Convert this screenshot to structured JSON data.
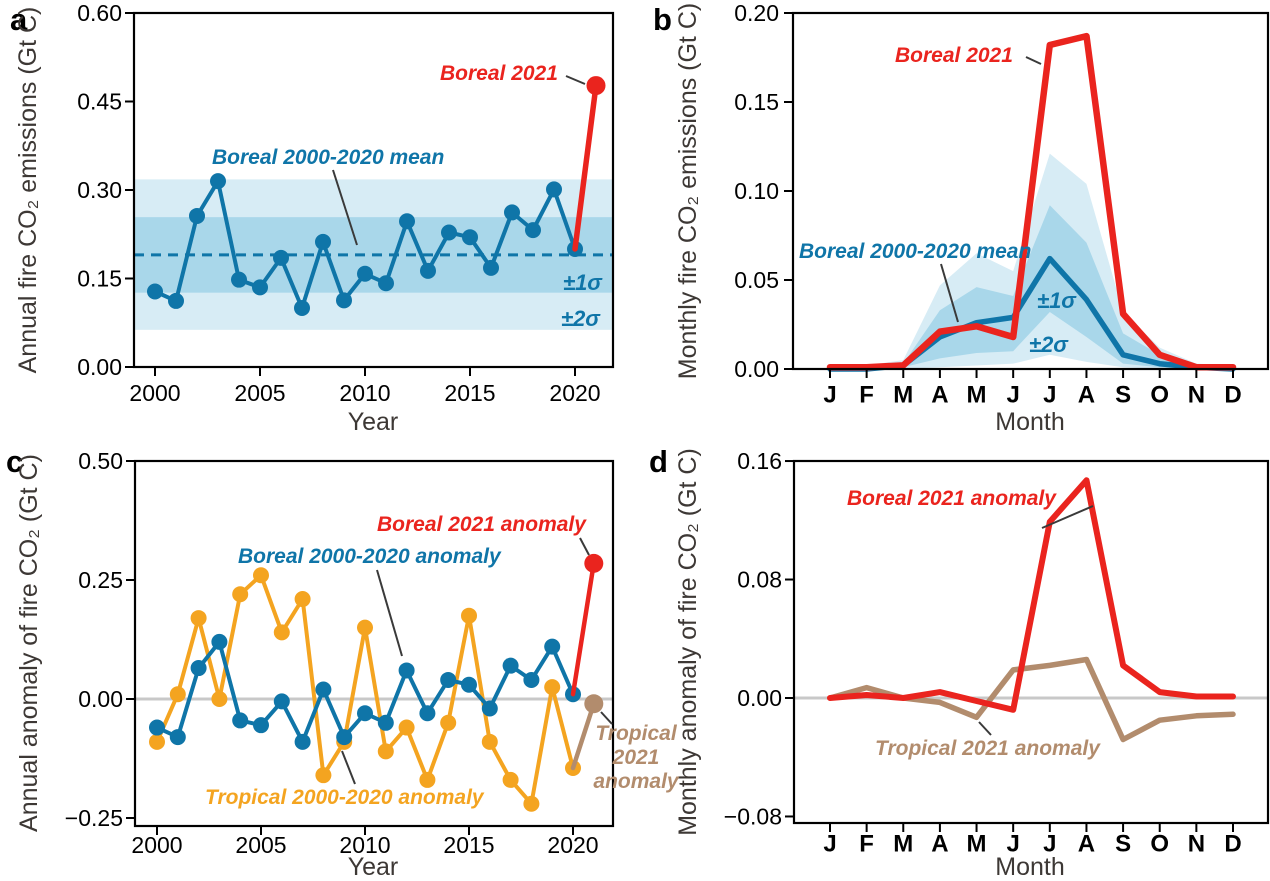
{
  "figure": {
    "panel_letters": [
      "a",
      "b",
      "c",
      "d"
    ],
    "colors": {
      "red": "#ea241e",
      "blue": "#0f75a8",
      "band1": "#a9d7ea",
      "band2": "#d7ecf5",
      "orange": "#f4a420",
      "tan": "#b28c6d",
      "zero_line": "#c8c8c8",
      "leader": "#3a3a3a",
      "axis": "#000000"
    }
  },
  "panels": [
    {
      "letter": "a",
      "xlabel": "Year",
      "ylabel": "Annual fire CO₂ emissions (Gt C)",
      "annotations": [
        {
          "id": "boreal-2021",
          "text": "Boreal 2021",
          "color": "red"
        },
        {
          "id": "boreal-mean",
          "text": "Boreal 2000-2020 mean",
          "color": "blue"
        },
        {
          "id": "sigma1",
          "text": "±1σ",
          "color": "blue"
        },
        {
          "id": "sigma2",
          "text": "±2σ",
          "color": "blue"
        }
      ]
    },
    {
      "letter": "b",
      "xlabel": "Month",
      "ylabel": "Monthly fire CO₂ emissions (Gt C)",
      "annotations": [
        {
          "id": "boreal-2021",
          "text": "Boreal 2021",
          "color": "red"
        },
        {
          "id": "boreal-mean",
          "text": "Boreal 2000-2020 mean",
          "color": "blue"
        },
        {
          "id": "sigma1",
          "text": "±1σ",
          "color": "blue"
        },
        {
          "id": "sigma2",
          "text": "±2σ",
          "color": "blue"
        }
      ]
    },
    {
      "letter": "c",
      "xlabel": "Year",
      "ylabel": "Annual anomaly of fire CO₂ (Gt C)",
      "annotations": [
        {
          "id": "boreal-2021-anomaly",
          "text": "Boreal 2021 anomaly",
          "color": "red"
        },
        {
          "id": "boreal-anomaly",
          "text": "Boreal 2000-2020 anomaly",
          "color": "blue"
        },
        {
          "id": "tropical-anomaly",
          "text": "Tropical 2000-2020 anomaly",
          "color": "orange"
        },
        {
          "id": "tropical-2021-anomaly",
          "text": "Tropical 2021 anomaly",
          "color": "tan"
        }
      ]
    },
    {
      "letter": "d",
      "xlabel": "Month",
      "ylabel": "Monthly anomaly of fire CO₂ (Gt C)",
      "annotations": [
        {
          "id": "boreal-2021-anomaly",
          "text": "Boreal 2021 anomaly",
          "color": "red"
        },
        {
          "id": "tropical-2021-anomaly",
          "text": "Tropical 2021 anomaly",
          "color": "tan"
        }
      ]
    }
  ],
  "chart_data": [
    {
      "type": "line",
      "panel": "a",
      "xlabel": "Year",
      "ylabel": "Annual fire CO₂ emissions (Gt C)",
      "xlim": [
        1999,
        2021.8
      ],
      "ylim": [
        0.0,
        0.6
      ],
      "xticks": {
        "values": [
          2000,
          2005,
          2010,
          2015,
          2020
        ],
        "labels": [
          "2000",
          "2005",
          "2010",
          "2015",
          "2020"
        ]
      },
      "yticks": {
        "values": [
          0.0,
          0.15,
          0.3,
          0.45,
          0.6
        ],
        "labels": [
          "0.00",
          "0.15",
          "0.30",
          "0.45",
          "0.60"
        ]
      },
      "mean_line": {
        "value": 0.19,
        "style": "dashed",
        "color": "blue",
        "label": "Boreal 2000-2020 mean"
      },
      "bands": [
        {
          "name": "±2σ",
          "range": [
            0.063,
            0.318
          ],
          "color": "band2"
        },
        {
          "name": "±1σ",
          "range": [
            0.126,
            0.254
          ],
          "color": "band1"
        }
      ],
      "series": [
        {
          "name": "Boreal 2000-2020",
          "color": "blue",
          "dots": true,
          "width": 4,
          "x": [
            2000,
            2001,
            2002,
            2003,
            2004,
            2005,
            2006,
            2007,
            2008,
            2009,
            2010,
            2011,
            2012,
            2013,
            2014,
            2015,
            2016,
            2017,
            2018,
            2019,
            2020
          ],
          "values": [
            0.128,
            0.112,
            0.256,
            0.315,
            0.148,
            0.135,
            0.185,
            0.1,
            0.212,
            0.113,
            0.158,
            0.142,
            0.247,
            0.163,
            0.228,
            0.22,
            0.168,
            0.262,
            0.232,
            0.301,
            0.2
          ]
        },
        {
          "name": "Boreal 2021",
          "color": "red",
          "dots": "last",
          "width": 5.5,
          "x": [
            2020,
            2021
          ],
          "values": [
            0.2,
            0.477
          ]
        }
      ]
    },
    {
      "type": "line",
      "panel": "b",
      "xlabel": "Month",
      "ylabel": "Monthly fire CO₂ emissions (Gt C)",
      "categories": [
        "J",
        "F",
        "M",
        "A",
        "M",
        "J",
        "J",
        "A",
        "S",
        "O",
        "N",
        "D"
      ],
      "ylim": [
        0.0,
        0.2
      ],
      "yticks": {
        "values": [
          0.0,
          0.05,
          0.1,
          0.15,
          0.2
        ],
        "labels": [
          "0.00",
          "0.05",
          "0.10",
          "0.15",
          "0.20"
        ]
      },
      "bands": [
        {
          "name": "±2σ",
          "color": "band2",
          "upper": [
            0.001,
            0.002,
            0.005,
            0.047,
            0.065,
            0.055,
            0.121,
            0.104,
            0.032,
            0.012,
            0.003,
            0.002
          ],
          "lower": [
            0,
            0,
            0,
            0.001,
            0.002,
            0.003,
            0.008,
            0.004,
            0.001,
            0,
            0,
            0
          ]
        },
        {
          "name": "±1σ",
          "color": "band1",
          "upper": [
            0.001,
            0.001,
            0.003,
            0.033,
            0.046,
            0.041,
            0.092,
            0.071,
            0.02,
            0.008,
            0.002,
            0.001
          ],
          "lower": [
            0,
            0,
            0.001,
            0.006,
            0.009,
            0.01,
            0.032,
            0.018,
            0.003,
            0.001,
            0,
            0
          ]
        }
      ],
      "series": [
        {
          "name": "Boreal 2000-2020 mean",
          "color": "blue",
          "dots": false,
          "width": 5.5,
          "values": [
            0.0,
            0.0,
            0.002,
            0.018,
            0.026,
            0.029,
            0.062,
            0.039,
            0.008,
            0.003,
            0.001,
            0.0
          ]
        },
        {
          "name": "Boreal 2021",
          "color": "red",
          "dots": false,
          "width": 6.5,
          "values": [
            0.001,
            0.001,
            0.002,
            0.021,
            0.024,
            0.018,
            0.182,
            0.187,
            0.031,
            0.008,
            0.001,
            0.001
          ]
        }
      ]
    },
    {
      "type": "line",
      "panel": "c",
      "xlabel": "Year",
      "ylabel": "Annual anomaly of fire CO₂ (Gt C)",
      "xlim": [
        1999,
        2021.8
      ],
      "ylim": [
        -0.27,
        0.5
      ],
      "zero_line": true,
      "xticks": {
        "values": [
          2000,
          2005,
          2010,
          2015,
          2020
        ],
        "labels": [
          "2000",
          "2005",
          "2010",
          "2015",
          "2020"
        ]
      },
      "yticks": {
        "values": [
          -0.25,
          0.0,
          0.25,
          0.5
        ],
        "labels": [
          "−0.25",
          "0.00",
          "0.25",
          "0.50"
        ]
      },
      "series": [
        {
          "name": "Tropical 2000-2020 anomaly",
          "color": "orange",
          "dots": true,
          "width": 4,
          "x": [
            2000,
            2001,
            2002,
            2003,
            2004,
            2005,
            2006,
            2007,
            2008,
            2009,
            2010,
            2011,
            2012,
            2013,
            2014,
            2015,
            2016,
            2017,
            2018,
            2019,
            2020
          ],
          "values": [
            -0.09,
            0.01,
            0.17,
            0.0,
            0.22,
            0.26,
            0.14,
            0.21,
            -0.16,
            -0.09,
            0.15,
            -0.11,
            -0.06,
            -0.17,
            -0.05,
            0.175,
            -0.09,
            -0.17,
            -0.22,
            0.025,
            -0.145
          ]
        },
        {
          "name": "Boreal 2000-2020 anomaly",
          "color": "blue",
          "dots": true,
          "width": 4,
          "x": [
            2000,
            2001,
            2002,
            2003,
            2004,
            2005,
            2006,
            2007,
            2008,
            2009,
            2010,
            2011,
            2012,
            2013,
            2014,
            2015,
            2016,
            2017,
            2018,
            2019,
            2020
          ],
          "values": [
            -0.06,
            -0.08,
            0.065,
            0.12,
            -0.045,
            -0.055,
            -0.005,
            -0.09,
            0.02,
            -0.08,
            -0.03,
            -0.05,
            0.06,
            -0.03,
            0.04,
            0.03,
            -0.02,
            0.07,
            0.04,
            0.11,
            0.01
          ]
        },
        {
          "name": "Tropical 2021 anomaly",
          "color": "tan",
          "dots": "last",
          "width": 4.5,
          "x": [
            2020,
            2021
          ],
          "values": [
            -0.145,
            -0.01
          ]
        },
        {
          "name": "Boreal 2021 anomaly",
          "color": "red",
          "dots": "last",
          "width": 4.5,
          "x": [
            2020,
            2021
          ],
          "values": [
            0.01,
            0.285
          ]
        }
      ]
    },
    {
      "type": "line",
      "panel": "d",
      "xlabel": "Month",
      "ylabel": "Monthly anomaly of fire CO₂ (Gt C)",
      "categories": [
        "J",
        "F",
        "M",
        "A",
        "M",
        "J",
        "J",
        "A",
        "S",
        "O",
        "N",
        "D"
      ],
      "ylim": [
        -0.08,
        0.16
      ],
      "zero_line": true,
      "yticks": {
        "values": [
          -0.08,
          0.0,
          0.08,
          0.16
        ],
        "labels": [
          "−0.08",
          "0.00",
          "0.08",
          "0.16"
        ]
      },
      "series": [
        {
          "name": "Tropical 2021 anomaly",
          "color": "tan",
          "dots": false,
          "width": 5.5,
          "values": [
            0.0,
            0.007,
            0.0,
            -0.003,
            -0.013,
            0.019,
            0.022,
            0.026,
            -0.028,
            -0.015,
            -0.012,
            -0.011
          ]
        },
        {
          "name": "Boreal 2021 anomaly",
          "color": "red",
          "dots": false,
          "width": 6,
          "values": [
            0.0,
            0.002,
            0.0,
            0.004,
            -0.002,
            -0.008,
            0.119,
            0.147,
            0.022,
            0.004,
            0.001,
            0.001
          ]
        }
      ]
    }
  ]
}
